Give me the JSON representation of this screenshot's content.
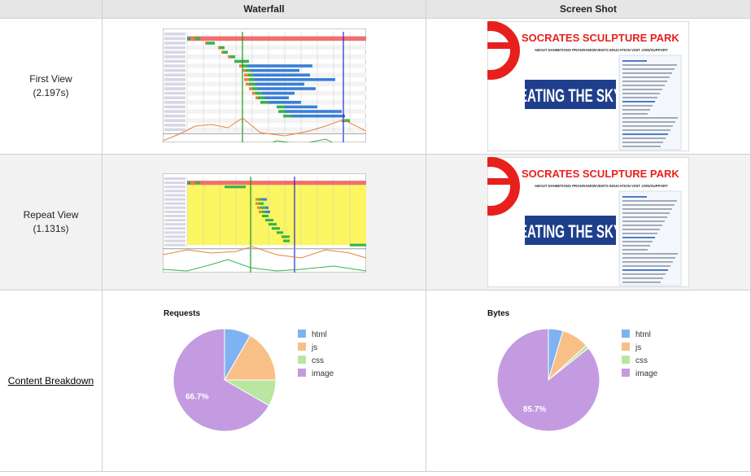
{
  "columns": {
    "waterfall": "Waterfall",
    "screenshot": "Screen Shot"
  },
  "first_view": {
    "label": "First View",
    "time": "(2.197s)"
  },
  "repeat_view": {
    "label": "Repeat View",
    "time": "(1.131s)"
  },
  "content_breakdown": {
    "label": "Content Breakdown"
  },
  "site": {
    "name": "SOCRATES SCULPTURE PARK",
    "nav": [
      "ABOUT",
      "EXHIBITIONS",
      "PROGRAMS/EVENTS",
      "EDUCATION",
      "VISIT",
      "JOIN/SUPPORT"
    ],
    "banner": "EATING THE SKY",
    "brand_color": "#e8201d",
    "banner_color": "#1f3f8c"
  },
  "colors": {
    "html": "#7fb2f0",
    "js": "#f8bf87",
    "css": "#b9e6a0",
    "image": "#c49be0"
  },
  "chart_data": [
    {
      "type": "pie",
      "title": "Requests",
      "categories": [
        "html",
        "js",
        "css",
        "image"
      ],
      "values": [
        8.3,
        16.7,
        8.3,
        66.7
      ],
      "data_labels": [
        "",
        "",
        "",
        "66.7%"
      ],
      "legend_placement": "right"
    },
    {
      "type": "pie",
      "title": "Bytes",
      "categories": [
        "html",
        "js",
        "css",
        "image"
      ],
      "values": [
        4.6,
        8.6,
        1.1,
        85.7
      ],
      "data_labels": [
        "",
        "",
        "",
        "85.7%"
      ],
      "legend_placement": "right"
    }
  ]
}
